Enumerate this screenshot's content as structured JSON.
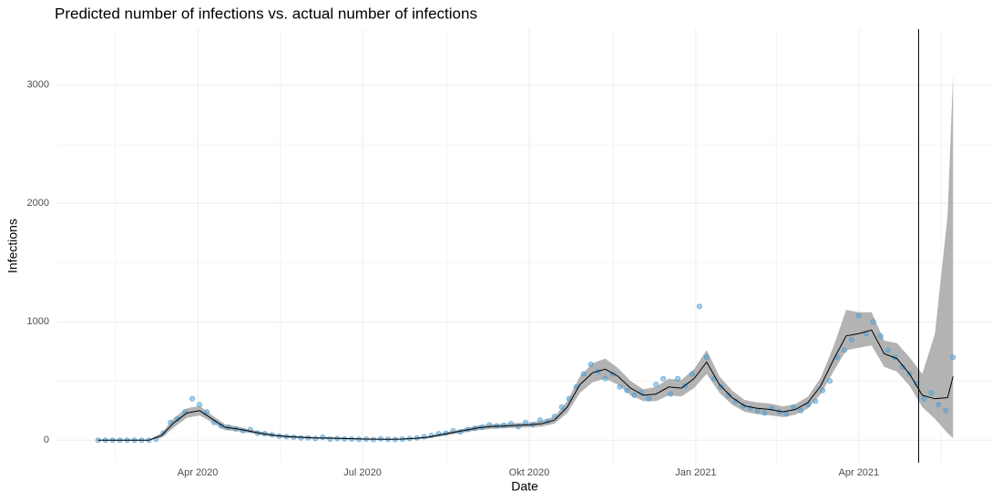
{
  "chart_data": {
    "type": "line",
    "title": "Predicted number of infections vs. actual number of infections",
    "xlabel": "Date",
    "ylabel": "Infections",
    "xlim": [
      "2020-01-14",
      "2021-06-14"
    ],
    "ylim": [
      -190,
      3470
    ],
    "xticks": [
      {
        "value": "2020-04-01",
        "label": "Apr 2020"
      },
      {
        "value": "2020-07-01",
        "label": "Jul 2020"
      },
      {
        "value": "2020-10-01",
        "label": "Okt 2020"
      },
      {
        "value": "2021-01-01",
        "label": "Jan 2021"
      },
      {
        "value": "2021-04-01",
        "label": "Apr 2021"
      }
    ],
    "yticks": [
      0,
      1000,
      2000,
      3000
    ],
    "grid": true,
    "minor_grid": true,
    "vline": "2021-05-04",
    "vline_color": "#000000",
    "x": [
      "2020-02-06",
      "2020-02-13",
      "2020-02-20",
      "2020-02-27",
      "2020-03-05",
      "2020-03-12",
      "2020-03-19",
      "2020-03-26",
      "2020-04-02",
      "2020-04-09",
      "2020-04-16",
      "2020-04-23",
      "2020-04-30",
      "2020-05-07",
      "2020-05-14",
      "2020-05-21",
      "2020-05-28",
      "2020-06-04",
      "2020-06-11",
      "2020-06-18",
      "2020-06-25",
      "2020-07-02",
      "2020-07-09",
      "2020-07-16",
      "2020-07-23",
      "2020-07-30",
      "2020-08-06",
      "2020-08-13",
      "2020-08-20",
      "2020-08-27",
      "2020-09-03",
      "2020-09-10",
      "2020-09-17",
      "2020-09-24",
      "2020-10-01",
      "2020-10-08",
      "2020-10-15",
      "2020-10-22",
      "2020-10-29",
      "2020-11-05",
      "2020-11-12",
      "2020-11-19",
      "2020-11-26",
      "2020-12-03",
      "2020-12-10",
      "2020-12-17",
      "2020-12-24",
      "2020-12-31",
      "2021-01-07",
      "2021-01-14",
      "2021-01-21",
      "2021-01-28",
      "2021-02-04",
      "2021-02-11",
      "2021-02-18",
      "2021-02-25",
      "2021-03-04",
      "2021-03-11",
      "2021-03-18",
      "2021-03-25",
      "2021-04-01",
      "2021-04-08",
      "2021-04-15",
      "2021-04-22",
      "2021-04-29",
      "2021-05-06",
      "2021-05-13",
      "2021-05-20",
      "2021-05-23"
    ],
    "series": [
      {
        "color": "#000000",
        "values": [
          0,
          0,
          0,
          0,
          0,
          40,
          150,
          230,
          250,
          180,
          110,
          95,
          75,
          55,
          40,
          30,
          25,
          20,
          18,
          15,
          13,
          10,
          9,
          8,
          10,
          15,
          25,
          45,
          65,
          85,
          105,
          115,
          120,
          125,
          130,
          140,
          170,
          280,
          470,
          570,
          600,
          540,
          440,
          380,
          390,
          450,
          440,
          520,
          660,
          470,
          360,
          290,
          270,
          260,
          240,
          260,
          320,
          460,
          680,
          880,
          900,
          930,
          730,
          690,
          560,
          380,
          350,
          360,
          540
        ]
      }
    ],
    "ribbon": {
      "color": "#b3b3b3",
      "lower": [
        0,
        0,
        0,
        0,
        0,
        20,
        110,
        190,
        210,
        150,
        85,
        75,
        60,
        40,
        30,
        20,
        15,
        12,
        10,
        8,
        7,
        5,
        4,
        4,
        5,
        8,
        15,
        32,
        50,
        68,
        85,
        95,
        100,
        105,
        110,
        115,
        140,
        230,
        400,
        490,
        520,
        470,
        380,
        330,
        330,
        380,
        370,
        440,
        560,
        400,
        300,
        240,
        220,
        210,
        195,
        215,
        270,
        390,
        580,
        760,
        780,
        800,
        620,
        580,
        460,
        280,
        180,
        60,
        15
      ],
      "upper": [
        5,
        5,
        5,
        5,
        5,
        60,
        190,
        270,
        290,
        210,
        135,
        115,
        90,
        70,
        50,
        40,
        35,
        28,
        26,
        22,
        19,
        15,
        14,
        12,
        15,
        22,
        35,
        58,
        80,
        102,
        125,
        135,
        140,
        145,
        150,
        165,
        200,
        330,
        540,
        650,
        690,
        610,
        500,
        430,
        450,
        520,
        510,
        600,
        760,
        540,
        420,
        340,
        320,
        310,
        285,
        305,
        370,
        530,
        790,
        1100,
        1080,
        1080,
        840,
        820,
        700,
        560,
        900,
        1900,
        3090
      ]
    },
    "points": {
      "color": "#4d9fd6",
      "x": [
        "2020-02-06",
        "2020-02-10",
        "2020-02-14",
        "2020-02-18",
        "2020-02-22",
        "2020-02-26",
        "2020-03-01",
        "2020-03-05",
        "2020-03-09",
        "2020-03-13",
        "2020-03-17",
        "2020-03-21",
        "2020-03-25",
        "2020-03-29",
        "2020-04-02",
        "2020-04-06",
        "2020-04-10",
        "2020-04-14",
        "2020-04-18",
        "2020-04-22",
        "2020-04-26",
        "2020-04-30",
        "2020-05-04",
        "2020-05-08",
        "2020-05-12",
        "2020-05-16",
        "2020-05-20",
        "2020-05-24",
        "2020-05-28",
        "2020-06-01",
        "2020-06-05",
        "2020-06-09",
        "2020-06-13",
        "2020-06-17",
        "2020-06-21",
        "2020-06-25",
        "2020-06-29",
        "2020-07-03",
        "2020-07-07",
        "2020-07-11",
        "2020-07-15",
        "2020-07-19",
        "2020-07-23",
        "2020-07-27",
        "2020-07-31",
        "2020-08-04",
        "2020-08-08",
        "2020-08-12",
        "2020-08-16",
        "2020-08-20",
        "2020-08-24",
        "2020-08-28",
        "2020-09-01",
        "2020-09-05",
        "2020-09-09",
        "2020-09-13",
        "2020-09-17",
        "2020-09-21",
        "2020-09-25",
        "2020-09-29",
        "2020-10-03",
        "2020-10-07",
        "2020-10-11",
        "2020-10-15",
        "2020-10-19",
        "2020-10-23",
        "2020-10-27",
        "2020-10-31",
        "2020-11-04",
        "2020-11-08",
        "2020-11-12",
        "2020-11-16",
        "2020-11-20",
        "2020-11-24",
        "2020-11-28",
        "2020-12-02",
        "2020-12-06",
        "2020-12-10",
        "2020-12-14",
        "2020-12-18",
        "2020-12-22",
        "2020-12-26",
        "2020-12-30",
        "2021-01-03",
        "2021-01-07",
        "2021-01-11",
        "2021-01-15",
        "2021-01-19",
        "2021-01-23",
        "2021-01-27",
        "2021-01-31",
        "2021-02-04",
        "2021-02-08",
        "2021-02-12",
        "2021-02-16",
        "2021-02-20",
        "2021-02-24",
        "2021-02-28",
        "2021-03-04",
        "2021-03-08",
        "2021-03-12",
        "2021-03-16",
        "2021-03-20",
        "2021-03-24",
        "2021-03-28",
        "2021-04-01",
        "2021-04-05",
        "2021-04-09",
        "2021-04-13",
        "2021-04-17",
        "2021-04-21",
        "2021-04-25",
        "2021-04-29",
        "2021-05-03",
        "2021-05-07",
        "2021-05-11",
        "2021-05-15",
        "2021-05-19",
        "2021-05-23"
      ],
      "values": [
        0,
        0,
        0,
        0,
        0,
        0,
        0,
        0,
        10,
        60,
        150,
        180,
        240,
        350,
        300,
        240,
        150,
        120,
        110,
        95,
        80,
        90,
        60,
        55,
        45,
        35,
        30,
        25,
        20,
        20,
        15,
        25,
        10,
        15,
        12,
        10,
        8,
        10,
        5,
        12,
        8,
        6,
        10,
        15,
        20,
        30,
        40,
        55,
        60,
        80,
        70,
        90,
        100,
        110,
        130,
        120,
        125,
        140,
        115,
        150,
        130,
        170,
        160,
        200,
        280,
        350,
        450,
        560,
        640,
        580,
        520,
        560,
        450,
        420,
        380,
        400,
        350,
        470,
        520,
        390,
        520,
        460,
        560,
        1130,
        700,
        520,
        450,
        380,
        330,
        290,
        270,
        250,
        230,
        270,
        240,
        220,
        280,
        250,
        300,
        330,
        420,
        500,
        700,
        760,
        850,
        1050,
        900,
        1000,
        880,
        760,
        700,
        620,
        560,
        480,
        350,
        400,
        300,
        250,
        700
      ]
    }
  }
}
